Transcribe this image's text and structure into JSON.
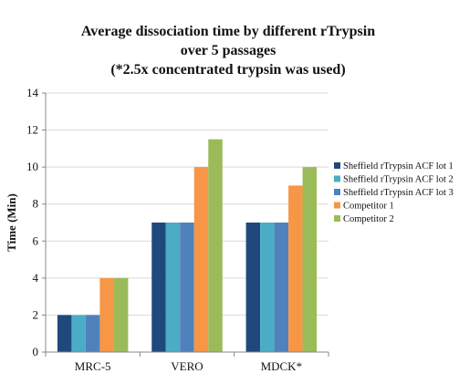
{
  "chart_data": {
    "type": "bar",
    "title_lines": [
      "Average dissociation time by different rTrypsin",
      "over 5 passages",
      "(*2.5x concentrated trypsin was used)"
    ],
    "xlabel": "",
    "ylabel": "Time (Min)",
    "ylim": [
      0,
      14
    ],
    "yticks": [
      0,
      2,
      4,
      6,
      8,
      10,
      12,
      14
    ],
    "grid": true,
    "legend_position": "right",
    "categories": [
      "MRC-5",
      "VERO",
      "MDCK*"
    ],
    "series": [
      {
        "name": "Sheffield rTrypsin ACF lot 1",
        "color": "#1f497d",
        "values": [
          2,
          7,
          7
        ]
      },
      {
        "name": "Sheffield rTrypsin ACF lot 2",
        "color": "#4bacc6",
        "values": [
          2,
          7,
          7
        ]
      },
      {
        "name": "Sheffield rTrypsin ACF lot 3",
        "color": "#4f81bd",
        "values": [
          2,
          7,
          7
        ]
      },
      {
        "name": "Competitor 1",
        "color": "#f79646",
        "values": [
          4,
          10,
          9
        ]
      },
      {
        "name": "Competitor 2",
        "color": "#9bbb59",
        "values": [
          4,
          11.5,
          10
        ]
      }
    ]
  }
}
